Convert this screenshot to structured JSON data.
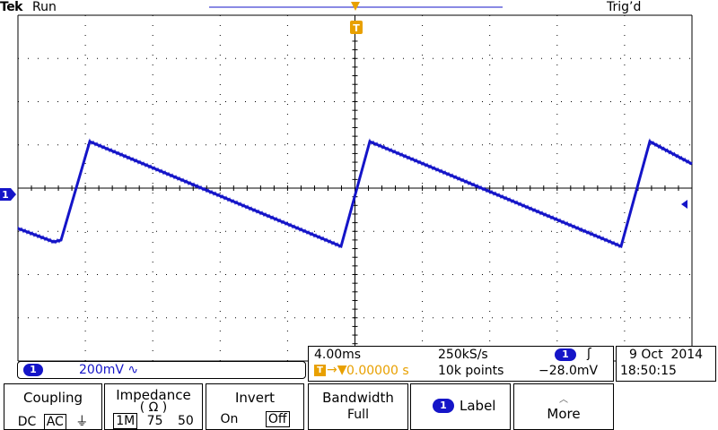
{
  "header": {
    "brand": "Tek",
    "run_state": "Run",
    "trigger_state": "Trig’d"
  },
  "markers": {
    "trigger_marker": "T",
    "channel_marker": "1"
  },
  "channel": {
    "number": "1",
    "scale": "200mV",
    "coupling_symbol": "∿",
    "color": "#1515c8"
  },
  "timebase": {
    "time_per_div": "4.00ms",
    "sample_rate": "250kS/s",
    "trigger_position": "0.00000 s",
    "record_length": "10k points",
    "trigger_channel": "1",
    "trigger_slope_symbol": "ʃ",
    "trigger_level": "−28.0mV"
  },
  "datetime": {
    "date": "9 Oct  2014",
    "time": "18:50:15"
  },
  "menu": {
    "coupling": {
      "title": "Coupling",
      "options": [
        "DC",
        "AC",
        "⏚"
      ],
      "selected": "AC"
    },
    "impedance": {
      "title": "Impedance",
      "unit": "( Ω )",
      "options": [
        "1M",
        "75",
        "50"
      ],
      "selected": "1M"
    },
    "invert": {
      "title": "Invert",
      "options": [
        "On",
        "Off"
      ],
      "selected": "Off"
    },
    "bandwidth": {
      "title": "Bandwidth",
      "value": "Full"
    },
    "label": {
      "badge": "1",
      "title": "Label"
    },
    "more": {
      "title": "More"
    }
  },
  "colors": {
    "trace": "#1515c8",
    "trigger": "#e8a000",
    "graticule": "#000000"
  }
}
